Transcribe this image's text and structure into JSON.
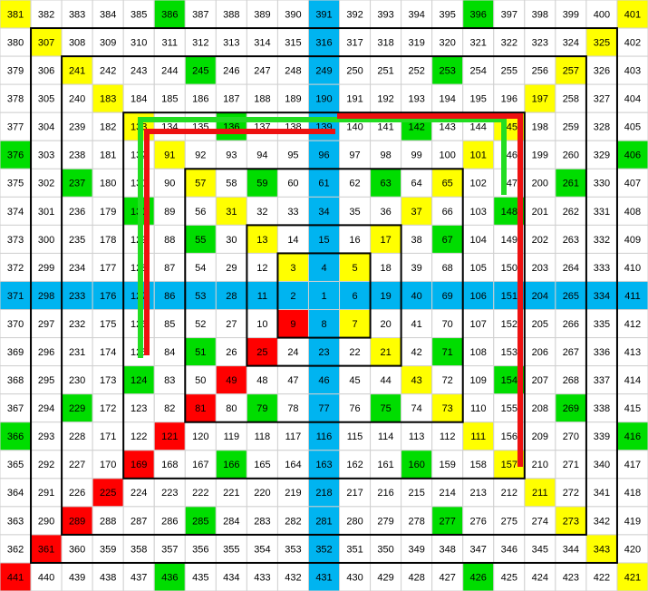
{
  "grid": {
    "rows": [
      [
        381,
        382,
        383,
        384,
        385,
        386,
        387,
        388,
        389,
        390,
        391,
        392,
        393,
        394,
        395,
        396,
        397,
        398,
        399,
        400,
        401
      ],
      [
        380,
        307,
        308,
        309,
        310,
        311,
        312,
        313,
        314,
        315,
        316,
        317,
        318,
        319,
        320,
        321,
        322,
        323,
        324,
        325,
        402
      ],
      [
        379,
        306,
        241,
        242,
        243,
        244,
        245,
        246,
        247,
        248,
        249,
        250,
        251,
        252,
        253,
        254,
        255,
        256,
        257,
        326,
        403
      ],
      [
        378,
        305,
        240,
        183,
        184,
        185,
        186,
        187,
        188,
        189,
        190,
        191,
        192,
        193,
        194,
        195,
        196,
        197,
        258,
        327,
        404
      ],
      [
        377,
        304,
        239,
        182,
        133,
        134,
        135,
        136,
        137,
        138,
        139,
        140,
        141,
        142,
        143,
        144,
        145,
        198,
        259,
        328,
        405
      ],
      [
        376,
        303,
        238,
        181,
        132,
        91,
        92,
        93,
        94,
        95,
        96,
        97,
        98,
        99,
        100,
        101,
        146,
        199,
        260,
        329,
        406
      ],
      [
        375,
        302,
        237,
        180,
        131,
        90,
        57,
        58,
        59,
        60,
        61,
        62,
        63,
        64,
        65,
        102,
        147,
        200,
        261,
        330,
        407
      ],
      [
        374,
        301,
        236,
        179,
        130,
        89,
        56,
        31,
        32,
        33,
        34,
        35,
        36,
        37,
        66,
        103,
        148,
        201,
        262,
        331,
        408
      ],
      [
        373,
        300,
        235,
        178,
        129,
        88,
        55,
        30,
        13,
        14,
        15,
        16,
        17,
        38,
        67,
        104,
        149,
        202,
        263,
        332,
        409
      ],
      [
        372,
        299,
        234,
        177,
        128,
        87,
        54,
        29,
        12,
        3,
        4,
        5,
        18,
        39,
        68,
        105,
        150,
        203,
        264,
        333,
        410
      ],
      [
        371,
        298,
        233,
        176,
        127,
        86,
        53,
        28,
        11,
        2,
        1,
        6,
        19,
        40,
        69,
        106,
        151,
        204,
        265,
        334,
        411
      ],
      [
        370,
        297,
        232,
        175,
        126,
        85,
        52,
        27,
        10,
        9,
        8,
        7,
        20,
        41,
        70,
        107,
        152,
        205,
        266,
        335,
        412
      ],
      [
        369,
        296,
        231,
        174,
        125,
        84,
        51,
        26,
        25,
        24,
        23,
        22,
        21,
        42,
        71,
        108,
        153,
        206,
        267,
        336,
        413
      ],
      [
        368,
        295,
        230,
        173,
        124,
        83,
        50,
        49,
        48,
        47,
        46,
        45,
        44,
        43,
        72,
        109,
        154,
        207,
        268,
        337,
        414
      ],
      [
        367,
        294,
        229,
        172,
        123,
        82,
        81,
        80,
        79,
        78,
        77,
        76,
        75,
        74,
        73,
        110,
        155,
        208,
        269,
        338,
        415
      ],
      [
        366,
        293,
        228,
        171,
        122,
        121,
        120,
        119,
        118,
        117,
        116,
        115,
        114,
        113,
        112,
        111,
        156,
        209,
        270,
        339,
        416
      ],
      [
        365,
        292,
        227,
        170,
        169,
        168,
        167,
        166,
        165,
        164,
        163,
        162,
        161,
        160,
        159,
        158,
        157,
        210,
        271,
        340,
        417
      ],
      [
        364,
        291,
        226,
        225,
        224,
        223,
        222,
        221,
        220,
        219,
        218,
        217,
        216,
        215,
        214,
        213,
        212,
        211,
        272,
        341,
        418
      ],
      [
        363,
        290,
        289,
        288,
        287,
        286,
        285,
        284,
        283,
        282,
        281,
        280,
        279,
        278,
        277,
        276,
        275,
        274,
        273,
        342,
        419
      ],
      [
        362,
        361,
        360,
        359,
        358,
        357,
        356,
        355,
        354,
        353,
        352,
        351,
        350,
        349,
        348,
        347,
        346,
        345,
        344,
        343,
        420
      ],
      [
        441,
        440,
        439,
        438,
        437,
        436,
        435,
        434,
        433,
        432,
        431,
        430,
        429,
        428,
        427,
        426,
        425,
        424,
        423,
        422,
        421
      ]
    ],
    "cell_colors": [
      "y....g....c....g....y",
      ".y........c........y.",
      "..y...g...c...g...y..",
      "...y......c......y...",
      "....y..g..c..g..y....",
      "g....y....c....y....g",
      "..g...y.g.c.g.y...g..",
      "....g..y..c..y..g....",
      "......g.y.c.y.g......",
      ".........ycy.........",
      "ccccccccccccccccccccc",
      ".........rcy.........",
      "......g.r.c.y.g......",
      "....g..r..c..y..g....",
      "..g...r.g.c.g.y...g..",
      "g....r....c....y....g",
      "....r..g..c..g..y....",
      "...r......c......y...",
      "..r...g...c...g...y..",
      ".r........c........y.",
      "r....g....c....g....y"
    ],
    "palette": {
      ".": "#ffffff",
      "y": "#ffff00",
      "g": "#00dd00",
      "r": "#ff0000",
      "c": "#00b4f0"
    }
  }
}
